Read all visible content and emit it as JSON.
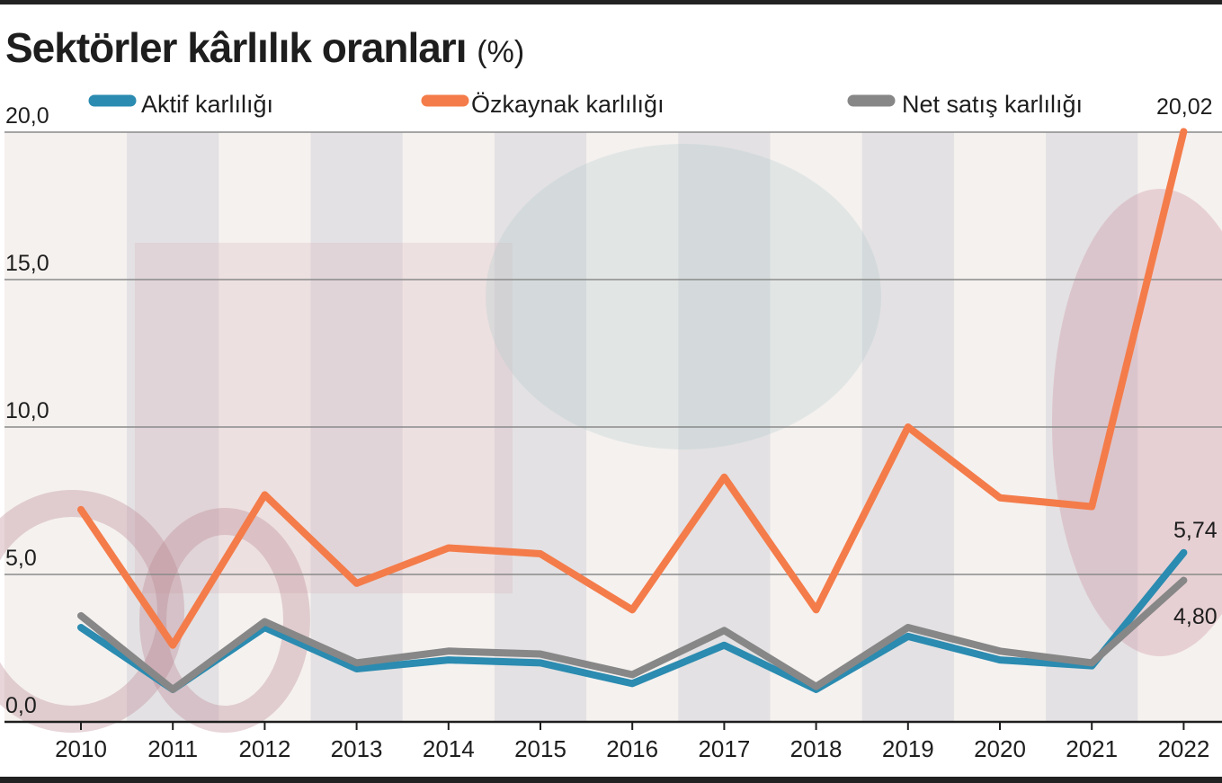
{
  "title": "Sektörler kârlılık oranları",
  "title_unit": "(%)",
  "chart_data": {
    "type": "line",
    "title": "Sektörler kârlılık oranları (%)",
    "x": [
      "2010",
      "2011",
      "2012",
      "2013",
      "2014",
      "2015",
      "2016",
      "2017",
      "2018",
      "2019",
      "2020",
      "2021",
      "2022"
    ],
    "ylim": [
      0,
      20
    ],
    "yticks": [
      "0,0",
      "5,0",
      "10,0",
      "15,0",
      "20,0"
    ],
    "grid": true,
    "legend_position": "top",
    "series": [
      {
        "name": "Aktif karlılığı",
        "color": "#2b8bb0",
        "values": [
          3.2,
          1.1,
          3.2,
          1.8,
          2.1,
          2.0,
          1.3,
          2.6,
          1.1,
          2.9,
          2.1,
          1.9,
          5.74
        ]
      },
      {
        "name": "Özkaynak karlılığı",
        "color": "#f47c4a",
        "values": [
          7.2,
          2.6,
          7.7,
          4.7,
          5.9,
          5.7,
          3.8,
          8.3,
          3.8,
          10.0,
          7.6,
          7.3,
          20.02
        ]
      },
      {
        "name": "Net satış karlılığı",
        "color": "#878787",
        "values": [
          3.6,
          1.1,
          3.4,
          2.0,
          2.4,
          2.3,
          1.6,
          3.1,
          1.2,
          3.2,
          2.4,
          2.0,
          4.8
        ]
      }
    ],
    "end_labels": [
      "20,02",
      "5,74",
      "4,80"
    ]
  }
}
